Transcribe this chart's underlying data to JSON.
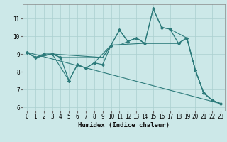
{
  "xlabel": "Humidex (Indice chaleur)",
  "bg_color": "#cce8e8",
  "line_color": "#2d7b7b",
  "grid_color": "#aacfcf",
  "xlim": [
    -0.5,
    23.5
  ],
  "ylim": [
    5.8,
    11.8
  ],
  "yticks": [
    6,
    7,
    8,
    9,
    10,
    11
  ],
  "xticks": [
    0,
    1,
    2,
    3,
    4,
    5,
    6,
    7,
    8,
    9,
    10,
    11,
    12,
    13,
    14,
    15,
    16,
    17,
    18,
    19,
    20,
    21,
    22,
    23
  ],
  "lines": [
    {
      "x": [
        0,
        1,
        2,
        3,
        4,
        5,
        6,
        7,
        8,
        9,
        10,
        11,
        12,
        13,
        14,
        15,
        16,
        17,
        18,
        19,
        20,
        21,
        22,
        23
      ],
      "y": [
        9.1,
        8.8,
        9.0,
        9.0,
        8.8,
        7.5,
        8.4,
        8.2,
        8.5,
        8.4,
        9.5,
        10.35,
        9.7,
        9.9,
        9.6,
        11.55,
        10.5,
        10.4,
        9.6,
        9.9,
        8.1,
        6.8,
        6.4,
        6.2
      ],
      "marker": "D",
      "markersize": 2.0,
      "linewidth": 0.9
    },
    {
      "x": [
        0,
        1,
        3,
        5,
        6,
        7,
        8,
        10,
        11,
        12,
        13,
        14,
        15,
        16,
        17,
        19,
        20,
        21,
        22,
        23
      ],
      "y": [
        9.1,
        8.8,
        9.0,
        7.5,
        8.4,
        8.2,
        8.5,
        9.5,
        10.35,
        9.7,
        9.9,
        9.6,
        11.55,
        10.5,
        10.4,
        9.9,
        8.1,
        6.8,
        6.4,
        6.2
      ],
      "marker": "+",
      "markersize": 3.5,
      "linewidth": 0.8
    },
    {
      "x": [
        0,
        1,
        3,
        4,
        9,
        10,
        14,
        15,
        16,
        17,
        18,
        19,
        20,
        21,
        22,
        23
      ],
      "y": [
        9.1,
        8.8,
        9.0,
        8.8,
        8.8,
        9.5,
        9.6,
        9.6,
        9.6,
        9.6,
        9.6,
        9.9,
        8.1,
        6.8,
        6.4,
        6.2
      ],
      "marker": null,
      "markersize": 0,
      "linewidth": 0.8
    },
    {
      "x": [
        0,
        1,
        3,
        9,
        10,
        11,
        12,
        13,
        14,
        15,
        16,
        17,
        18,
        19,
        20,
        21,
        22,
        23
      ],
      "y": [
        9.1,
        8.8,
        9.0,
        8.8,
        9.5,
        9.5,
        9.7,
        9.9,
        9.6,
        9.6,
        9.6,
        9.6,
        9.6,
        9.9,
        8.1,
        6.8,
        6.4,
        6.2
      ],
      "marker": null,
      "markersize": 0,
      "linewidth": 0.8
    },
    {
      "x": [
        0,
        23
      ],
      "y": [
        9.1,
        6.2
      ],
      "marker": null,
      "markersize": 0,
      "linewidth": 0.8
    }
  ]
}
